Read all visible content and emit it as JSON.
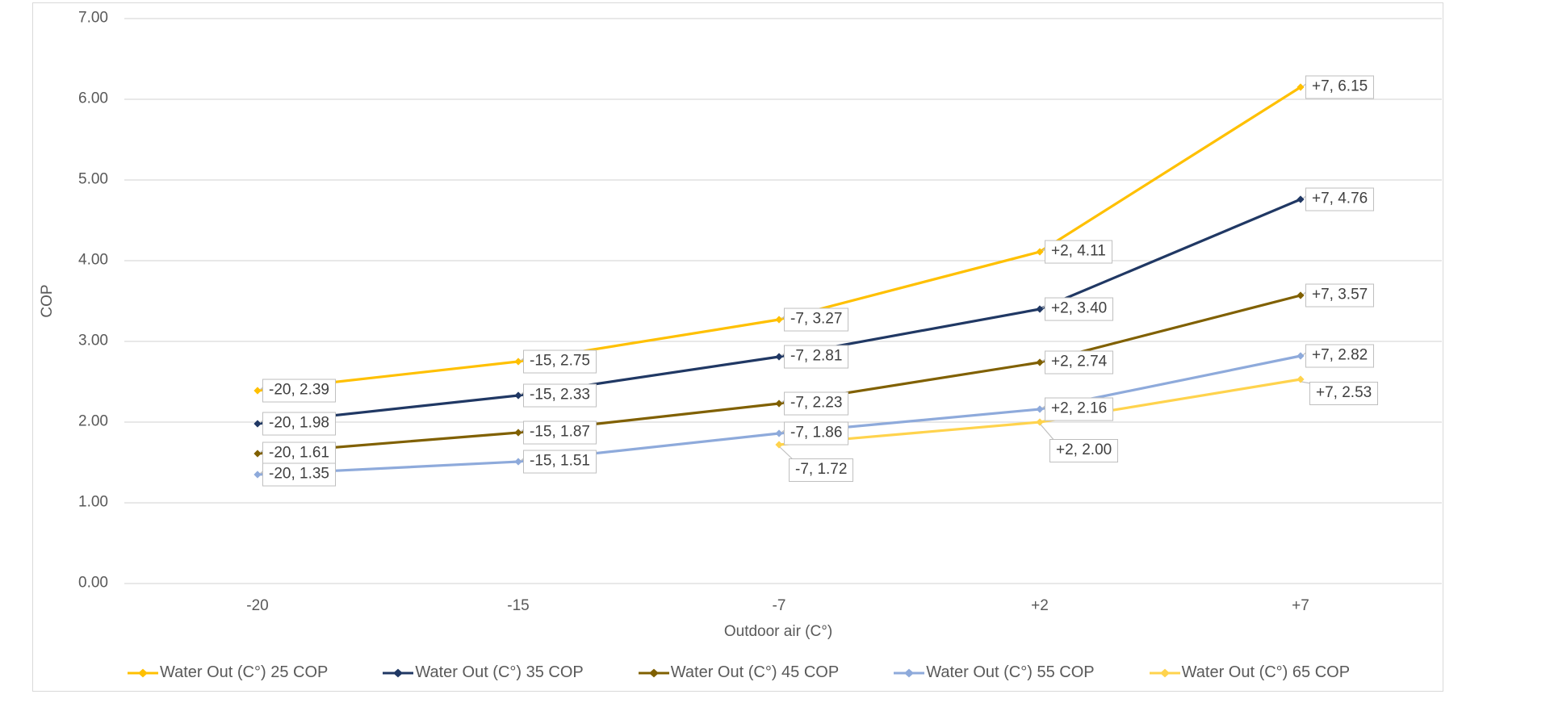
{
  "chart_data": {
    "type": "line",
    "title": "",
    "xlabel": "Outdoor air (C°)",
    "ylabel": "COP",
    "x_categories": [
      "-20",
      "-15",
      "-7",
      "+2",
      "+7"
    ],
    "y_ticks": [
      "7.00",
      "6.00",
      "5.00",
      "4.00",
      "3.00",
      "2.00",
      "1.00",
      "0.00"
    ],
    "ylim": [
      0,
      7
    ],
    "grid": "horizontal-only",
    "gridline_color": "#D9D9D9",
    "tick_text_color": "#595959",
    "label_box_border_color": "#BFBFBF",
    "label_text_color": "#404040",
    "legend_position": "bottom",
    "series": [
      {
        "name": "Water Out (C°) 25 COP",
        "color": "#FFC000",
        "points": [
          {
            "x": "-20",
            "y": 2.39,
            "label": "-20, 2.39"
          },
          {
            "x": "-15",
            "y": 2.75,
            "label": "-15, 2.75"
          },
          {
            "x": "-7",
            "y": 3.27,
            "label": "-7, 3.27"
          },
          {
            "x": "+2",
            "y": 4.11,
            "label": "+2, 4.11"
          },
          {
            "x": "+7",
            "y": 6.15,
            "label": "+7, 6.15"
          }
        ]
      },
      {
        "name": "Water Out (C°) 35 COP",
        "color": "#203864",
        "points": [
          {
            "x": "-20",
            "y": 1.98,
            "label": "-20, 1.98"
          },
          {
            "x": "-15",
            "y": 2.33,
            "label": "-15, 2.33"
          },
          {
            "x": "-7",
            "y": 2.81,
            "label": "-7, 2.81"
          },
          {
            "x": "+2",
            "y": 3.4,
            "label": "+2, 3.40"
          },
          {
            "x": "+7",
            "y": 4.76,
            "label": "+7, 4.76"
          }
        ]
      },
      {
        "name": "Water Out (C°) 45 COP",
        "color": "#806000",
        "points": [
          {
            "x": "-20",
            "y": 1.61,
            "label": "-20, 1.61"
          },
          {
            "x": "-15",
            "y": 1.87,
            "label": "-15, 1.87"
          },
          {
            "x": "-7",
            "y": 2.23,
            "label": "-7, 2.23"
          },
          {
            "x": "+2",
            "y": 2.74,
            "label": "+2, 2.74"
          },
          {
            "x": "+7",
            "y": 3.57,
            "label": "+7, 3.57"
          }
        ]
      },
      {
        "name": "Water Out (C°) 55 COP",
        "color": "#8EAADB",
        "points": [
          {
            "x": "-20",
            "y": 1.35,
            "label": "-20, 1.35"
          },
          {
            "x": "-15",
            "y": 1.51,
            "label": "-15, 1.51"
          },
          {
            "x": "-7",
            "y": 1.86,
            "label": "-7, 1.86"
          },
          {
            "x": "+2",
            "y": 2.16,
            "label": "+2, 2.16"
          },
          {
            "x": "+7",
            "y": 2.82,
            "label": "+7, 2.82"
          }
        ]
      },
      {
        "name": "Water Out (C°) 65 COP",
        "color": "#FFD34D",
        "points": [
          {
            "x": "-7",
            "y": 1.72,
            "label": "-7, 1.72",
            "label_pos": "below",
            "label_dx": 12,
            "label_dy": 17
          },
          {
            "x": "+2",
            "y": 2.0,
            "label": "+2, 2.00",
            "label_pos": "below",
            "label_dx": 12,
            "label_dy": 21
          },
          {
            "x": "+7",
            "y": 2.53,
            "label": "+7, 2.53",
            "label_pos": "below",
            "label_dx": 11,
            "label_dy": 3
          }
        ]
      }
    ]
  }
}
